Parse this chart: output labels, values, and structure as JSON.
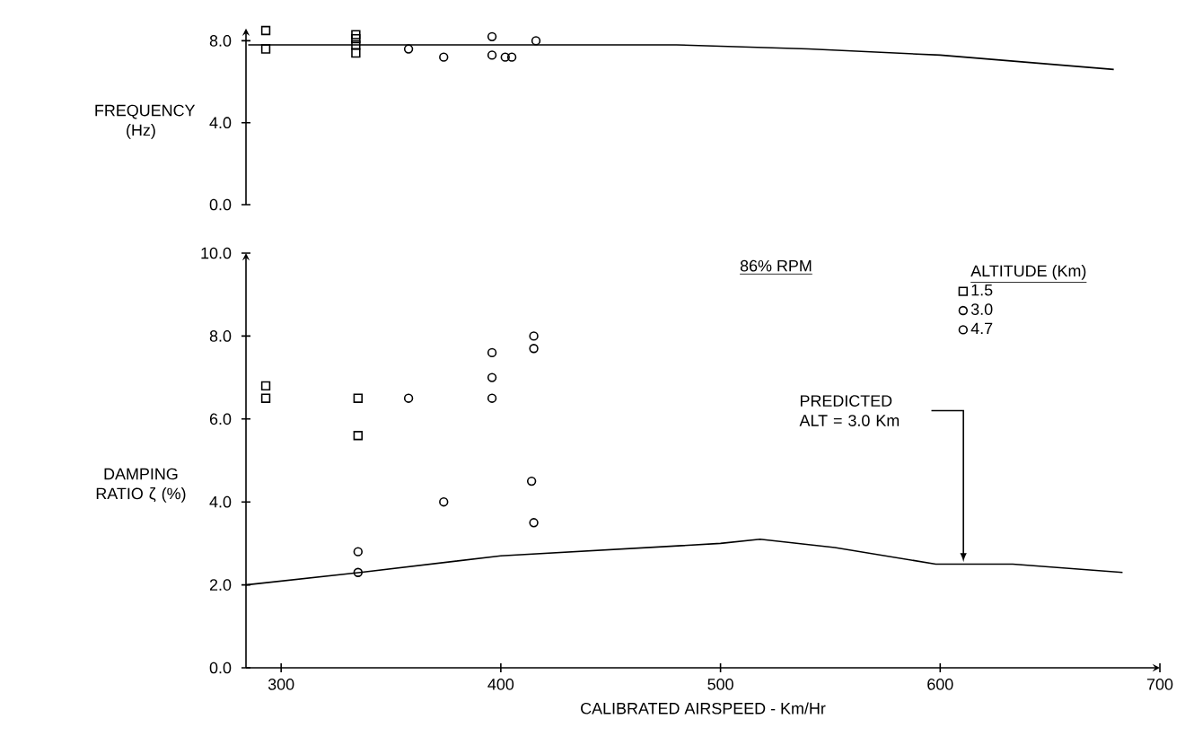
{
  "chart_data": [
    {
      "type": "scatter",
      "ylabel": "FREQUENCY (Hz)",
      "xlim": [
        284,
        700
      ],
      "ylim": [
        0,
        8.6
      ],
      "xticks": [
        300,
        400,
        500,
        600,
        700
      ],
      "yticks": [
        {
          "value": 0,
          "label": "0.0"
        },
        {
          "value": 4,
          "label": "4.0"
        },
        {
          "value": 8,
          "label": "8.0"
        }
      ],
      "tick_labels": "y",
      "series": [
        {
          "color": "#000000",
          "marker": "square",
          "x": [
            293,
            293,
            334,
            334,
            334,
            334
          ],
          "values": [
            8.5,
            7.6,
            8.3,
            8.1,
            7.8,
            7.4
          ]
        },
        {
          "color": "#000000",
          "marker": "circle",
          "x": [
            358,
            374,
            396,
            396,
            402,
            405
          ],
          "values": [
            7.6,
            7.2,
            8.2,
            7.3,
            7.2,
            7.2
          ]
        },
        {
          "color": "#000000",
          "marker": "circle",
          "x": [
            416
          ],
          "values": [
            8.0
          ]
        },
        {
          "type": "line",
          "color": "#000000",
          "x": [
            285,
            400,
            480,
            540,
            600,
            679
          ],
          "values": [
            7.8,
            7.8,
            7.8,
            7.6,
            7.3,
            6.6
          ]
        }
      ]
    },
    {
      "type": "scatter",
      "xlabel": "CALIBRATED AIRSPEED - Km/Hr",
      "ylabel": "DAMPING RATIO ζ (%)",
      "legend_title": "ALTITUDE (Km)",
      "legend": "top right",
      "xlim": [
        284,
        700
      ],
      "ylim": [
        0,
        10
      ],
      "xticks": [
        300,
        400,
        500,
        600,
        700
      ],
      "yticks": [
        {
          "value": 0,
          "label": "0.0"
        },
        {
          "value": 2,
          "label": "2.0"
        },
        {
          "value": 4,
          "label": "4.0"
        },
        {
          "value": 6,
          "label": "6.0"
        },
        {
          "value": 8,
          "label": "8.0"
        },
        {
          "value": 10,
          "label": "10.0"
        }
      ],
      "annotations": [
        "86% RPM",
        "PREDICTED ALT = 3.0 Km"
      ],
      "series": [
        {
          "name": "1.5",
          "color": "#000000",
          "marker": "square",
          "x": [
            293,
            293,
            335,
            335
          ],
          "values": [
            6.8,
            6.5,
            6.5,
            5.6
          ]
        },
        {
          "name": "3.0",
          "color": "#000000",
          "marker": "circle",
          "x": [
            335,
            335,
            358,
            374,
            396,
            396,
            396
          ],
          "values": [
            2.8,
            2.3,
            6.5,
            4.0,
            7.6,
            7.0,
            6.5
          ]
        },
        {
          "name": "4.7",
          "color": "#000000",
          "marker": "circle",
          "x": [
            415,
            415,
            414,
            415
          ],
          "values": [
            8.0,
            7.7,
            4.5,
            3.5
          ]
        },
        {
          "type": "line",
          "color": "#000000",
          "x": [
            284,
            336,
            400,
            500,
            518,
            552,
            598,
            633,
            683
          ],
          "values": [
            2.0,
            2.3,
            2.7,
            3.0,
            3.1,
            2.9,
            2.5,
            2.5,
            2.3
          ]
        }
      ]
    }
  ]
}
